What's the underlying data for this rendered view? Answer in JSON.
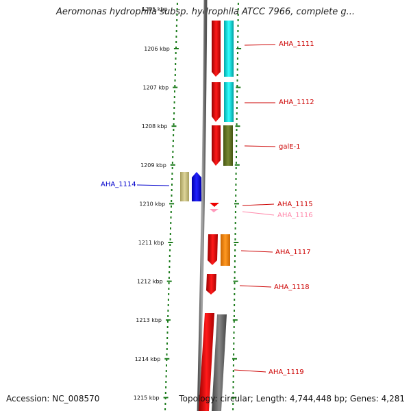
{
  "title": "Aeromonas hydrophila subsp. hydrophila ATCC 7966, complete g...",
  "accession": "Accession: NC_008570",
  "summary": "Topology: circular; Length: 4,744,448 bp; Genes: 4,281",
  "top_ruler_partial": "1205 kbp",
  "ruler": [
    {
      "label": "1206 kbp",
      "kbp": 1206
    },
    {
      "label": "1207 kbp",
      "kbp": 1207
    },
    {
      "label": "1208 kbp",
      "kbp": 1208
    },
    {
      "label": "1209 kbp",
      "kbp": 1209
    },
    {
      "label": "1210 kbp",
      "kbp": 1210
    },
    {
      "label": "1211 kbp",
      "kbp": 1211
    },
    {
      "label": "1212 kbp",
      "kbp": 1212
    },
    {
      "label": "1213 kbp",
      "kbp": 1213
    },
    {
      "label": "1214 kbp",
      "kbp": 1214
    },
    {
      "label": "1215 kbp",
      "kbp": 1215
    }
  ],
  "genes": [
    {
      "name": "AHA_1111",
      "color": "#cc0000"
    },
    {
      "name": "AHA_1112",
      "color": "#cc0000"
    },
    {
      "name": "galE-1",
      "color": "#cc0000"
    },
    {
      "name": "AHA_1114",
      "color": "#0000cc"
    },
    {
      "name": "AHA_1115",
      "color": "#cc0000"
    },
    {
      "name": "AHA_1116",
      "color": "#ff88aa"
    },
    {
      "name": "AHA_1117",
      "color": "#cc0000"
    },
    {
      "name": "AHA_1118",
      "color": "#cc0000"
    },
    {
      "name": "AHA_1119",
      "color": "#cc0000"
    }
  ],
  "colors": {
    "ruler": "#1a7a1a",
    "backbone": "#777777",
    "cds_red": "#ee0000",
    "cds_cyan": "#00e5e5",
    "cds_olive": "#667722",
    "cds_khaki": "#c8be80",
    "cds_blue": "#0000ff",
    "cds_orange": "#ff8800",
    "cds_gray": "#666666",
    "cds_pink": "#ff99bb"
  }
}
